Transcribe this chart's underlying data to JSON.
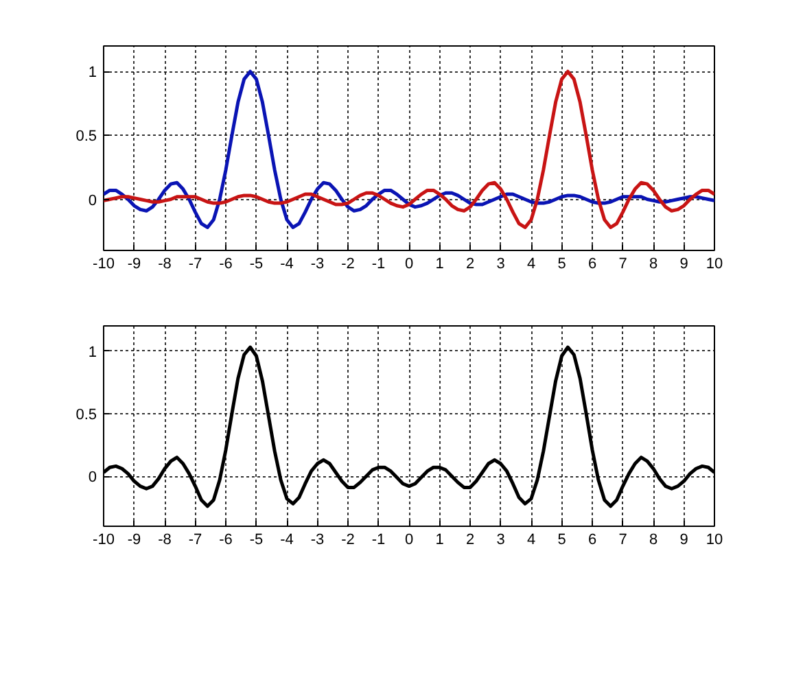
{
  "chart_data": [
    {
      "type": "line",
      "grid": true,
      "xlim": [
        -10,
        10
      ],
      "ylim": [
        -0.4,
        1.2
      ],
      "xticks": [
        -10,
        -9,
        -8,
        -7,
        -6,
        -5,
        -4,
        -3,
        -2,
        -1,
        0,
        1,
        2,
        3,
        4,
        5,
        6,
        7,
        8,
        9,
        10
      ],
      "yticks": [
        0,
        0.5,
        1
      ],
      "x": [
        -10,
        -9.8,
        -9.6,
        -9.4,
        -9.2,
        -9,
        -8.8,
        -8.6,
        -8.4,
        -8.2,
        -8,
        -7.8,
        -7.6,
        -7.4,
        -7.2,
        -7,
        -6.8,
        -6.6,
        -6.4,
        -6.2,
        -6,
        -5.8,
        -5.6,
        -5.4,
        -5.2,
        -5,
        -4.8,
        -4.6,
        -4.4,
        -4.2,
        -4,
        -3.8,
        -3.6,
        -3.4,
        -3.2,
        -3,
        -2.8,
        -2.6,
        -2.4,
        -2.2,
        -2,
        -1.8,
        -1.6,
        -1.4,
        -1.2,
        -1,
        -0.8,
        -0.6,
        -0.4,
        -0.2,
        0,
        0.2,
        0.4,
        0.6,
        0.8,
        1,
        1.2,
        1.4,
        1.6,
        1.8,
        2,
        2.2,
        2.4,
        2.6,
        2.8,
        3,
        3.2,
        3.4,
        3.6,
        3.8,
        4,
        4.2,
        4.4,
        4.6,
        4.8,
        5,
        5.2,
        5.4,
        5.6,
        5.8,
        6,
        6.2,
        6.4,
        6.6,
        6.8,
        7,
        7.2,
        7.4,
        7.6,
        7.8,
        8,
        8.2,
        8.4,
        8.6,
        8.8,
        9,
        9.2,
        9.4,
        9.6,
        9.8,
        10
      ],
      "series": [
        {
          "color": "#0a14b4",
          "values": [
            0.04,
            0.07,
            0.07,
            0.04,
            0,
            -0.05,
            -0.08,
            -0.09,
            -0.06,
            0,
            0.07,
            0.12,
            0.13,
            0.08,
            0,
            -0.1,
            -0.19,
            -0.22,
            -0.16,
            0,
            0.23,
            0.5,
            0.76,
            0.94,
            1,
            0.94,
            0.76,
            0.5,
            0.23,
            0,
            -0.16,
            -0.22,
            -0.19,
            -0.1,
            0,
            0.08,
            0.13,
            0.12,
            0.07,
            0,
            -0.06,
            -0.09,
            -0.08,
            -0.05,
            0,
            0.04,
            0.07,
            0.07,
            0.04,
            0,
            -0.04,
            -0.06,
            -0.05,
            -0.03,
            0,
            0.03,
            0.05,
            0.05,
            0.03,
            0,
            -0.03,
            -0.04,
            -0.04,
            -0.02,
            0,
            0.02,
            0.04,
            0.04,
            0.02,
            0,
            -0.02,
            -0.03,
            -0.03,
            -0.02,
            0,
            0.02,
            0.03,
            0.03,
            0.02,
            0,
            -0.02,
            -0.03,
            -0.03,
            -0.02,
            0,
            0.02,
            0.02,
            0.02,
            0.02,
            0,
            -0.01,
            -0.02,
            -0.02,
            -0.01,
            0,
            0.01,
            0.02,
            0.02,
            0.01,
            0,
            -0.01
          ]
        },
        {
          "color": "#c81414",
          "values": [
            -0.01,
            0,
            0.01,
            0.02,
            0.02,
            0.01,
            0,
            -0.01,
            -0.02,
            -0.02,
            -0.01,
            0,
            0.02,
            0.02,
            0.02,
            0.02,
            0,
            -0.02,
            -0.03,
            -0.03,
            -0.02,
            0,
            0.02,
            0.03,
            0.03,
            0.02,
            0,
            -0.02,
            -0.03,
            -0.03,
            -0.02,
            0,
            0.02,
            0.04,
            0.04,
            0.02,
            0,
            -0.02,
            -0.04,
            -0.04,
            -0.03,
            0,
            0.03,
            0.05,
            0.05,
            0.03,
            0,
            -0.03,
            -0.05,
            -0.06,
            -0.04,
            0,
            0.04,
            0.07,
            0.07,
            0.04,
            0,
            -0.05,
            -0.08,
            -0.09,
            -0.06,
            0,
            0.07,
            0.12,
            0.13,
            0.08,
            0,
            -0.1,
            -0.19,
            -0.22,
            -0.16,
            0,
            0.23,
            0.5,
            0.76,
            0.94,
            1,
            0.94,
            0.76,
            0.5,
            0.23,
            0,
            -0.16,
            -0.22,
            -0.19,
            -0.1,
            0,
            0.08,
            0.13,
            0.12,
            0.07,
            0,
            -0.06,
            -0.09,
            -0.08,
            -0.05,
            0,
            0.04,
            0.07,
            0.07,
            0.04
          ]
        }
      ]
    },
    {
      "type": "line",
      "grid": true,
      "xlim": [
        -10,
        10
      ],
      "ylim": [
        -0.4,
        1.2
      ],
      "xticks": [
        -10,
        -9,
        -8,
        -7,
        -6,
        -5,
        -4,
        -3,
        -2,
        -1,
        0,
        1,
        2,
        3,
        4,
        5,
        6,
        7,
        8,
        9,
        10
      ],
      "yticks": [
        0,
        0.5,
        1
      ],
      "x": [
        -10,
        -9.8,
        -9.6,
        -9.4,
        -9.2,
        -9,
        -8.8,
        -8.6,
        -8.4,
        -8.2,
        -8,
        -7.8,
        -7.6,
        -7.4,
        -7.2,
        -7,
        -6.8,
        -6.6,
        -6.4,
        -6.2,
        -6,
        -5.8,
        -5.6,
        -5.4,
        -5.2,
        -5,
        -4.8,
        -4.6,
        -4.4,
        -4.2,
        -4,
        -3.8,
        -3.6,
        -3.4,
        -3.2,
        -3,
        -2.8,
        -2.6,
        -2.4,
        -2.2,
        -2,
        -1.8,
        -1.6,
        -1.4,
        -1.2,
        -1,
        -0.8,
        -0.6,
        -0.4,
        -0.2,
        0,
        0.2,
        0.4,
        0.6,
        0.8,
        1,
        1.2,
        1.4,
        1.6,
        1.8,
        2,
        2.2,
        2.4,
        2.6,
        2.8,
        3,
        3.2,
        3.4,
        3.6,
        3.8,
        4,
        4.2,
        4.4,
        4.6,
        4.8,
        5,
        5.2,
        5.4,
        5.6,
        5.8,
        6,
        6.2,
        6.4,
        6.6,
        6.8,
        7,
        7.2,
        7.4,
        7.6,
        7.8,
        8,
        8.2,
        8.4,
        8.6,
        8.8,
        9,
        9.2,
        9.4,
        9.6,
        9.8,
        10
      ],
      "series": [
        {
          "color": "#000000",
          "values": [
            0.03,
            0.07,
            0.08,
            0.06,
            0.02,
            -0.04,
            -0.08,
            -0.1,
            -0.08,
            -0.02,
            0.06,
            0.12,
            0.15,
            0.1,
            0.02,
            -0.08,
            -0.19,
            -0.24,
            -0.19,
            -0.03,
            0.21,
            0.5,
            0.78,
            0.97,
            1.03,
            0.96,
            0.76,
            0.48,
            0.2,
            -0.03,
            -0.18,
            -0.22,
            -0.17,
            -0.06,
            0.04,
            0.1,
            0.13,
            0.1,
            0.03,
            -0.04,
            -0.09,
            -0.09,
            -0.05,
            0,
            0.05,
            0.07,
            0.07,
            0.04,
            -0.01,
            -0.06,
            -0.08,
            -0.06,
            -0.01,
            0.04,
            0.07,
            0.07,
            0.05,
            0,
            -0.05,
            -0.09,
            -0.09,
            -0.04,
            0.03,
            0.1,
            0.13,
            0.1,
            0.04,
            -0.06,
            -0.17,
            -0.22,
            -0.18,
            -0.03,
            0.2,
            0.48,
            0.76,
            0.96,
            1.03,
            0.97,
            0.78,
            0.5,
            0.21,
            -0.03,
            -0.19,
            -0.24,
            -0.19,
            -0.08,
            0.02,
            0.1,
            0.15,
            0.12,
            0.06,
            -0.02,
            -0.08,
            -0.1,
            -0.08,
            -0.04,
            0.02,
            0.06,
            0.08,
            0.07,
            0.03
          ]
        }
      ]
    }
  ]
}
